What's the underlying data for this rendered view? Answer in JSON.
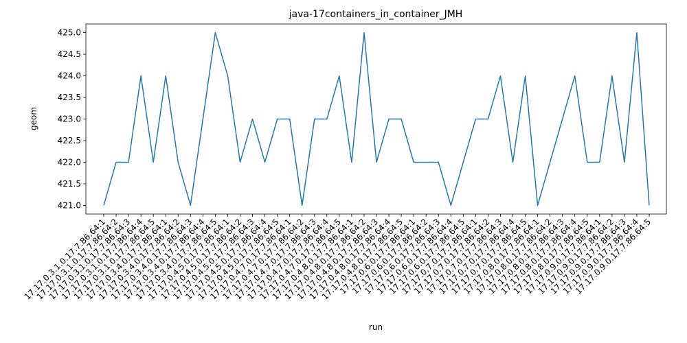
{
  "chart_data": {
    "type": "line",
    "title": "java-17containers_in_container_JMH",
    "xlabel": "run",
    "ylabel": "geom",
    "ylim": [
      420.8,
      425.2
    ],
    "yticks": [
      "421.0",
      "421.5",
      "422.0",
      "422.5",
      "423.0",
      "423.5",
      "424.0",
      "424.5",
      "425.0"
    ],
    "grid": false,
    "line_color": "#1f77b4",
    "categories": [
      "17.17.0.3.1.0.17.7.86.64:1",
      "17.17.0.3.1.0.17.7.86.64:2",
      "17.17.0.3.1.0.17.7.86.64:3",
      "17.17.0.3.1.0.17.7.86.64:4",
      "17.17.0.3.1.0.17.7.86.64:5",
      "17.17.0.3.4.0.17.7.86.64:1",
      "17.17.0.3.4.0.17.7.86.64:2",
      "17.17.0.3.4.0.17.7.86.64:3",
      "17.17.0.3.4.0.17.7.86.64:4",
      "17.17.0.3.4.0.17.7.86.64:5",
      "17.17.0.4.5.0.17.7.86.64:1",
      "17.17.0.4.5.0.17.7.86.64:2",
      "17.17.0.4.5.0.17.7.86.64:3",
      "17.17.0.4.5.0.17.7.86.64:4",
      "17.17.0.4.5.0.17.7.86.64:5",
      "17.17.0.4.7.0.17.7.86.64:1",
      "17.17.0.4.7.0.17.7.86.64:2",
      "17.17.0.4.7.0.17.7.86.64:3",
      "17.17.0.4.7.0.17.7.86.64:4",
      "17.17.0.4.7.0.17.7.86.64:5",
      "17.17.0.4.8.0.17.7.86.64:1",
      "17.17.0.4.8.0.17.7.86.64:2",
      "17.17.0.4.8.0.17.7.86.64:3",
      "17.17.0.4.8.0.17.7.86.64:4",
      "17.17.0.4.8.0.17.7.86.64:5",
      "17.17.0.6.0.17.7.86.64:1",
      "17.17.0.6.0.17.7.86.64:2",
      "17.17.0.6.0.17.7.86.64:3",
      "17.17.0.6.0.17.7.86.64:4",
      "17.17.0.6.0.17.7.86.64:5",
      "17.17.0.7.0.17.7.86.64:1",
      "17.17.0.7.0.17.7.86.64:2",
      "17.17.0.7.0.17.7.86.64:3",
      "17.17.0.7.0.17.7.86.64:4",
      "17.17.0.7.0.17.7.86.64:5",
      "17.17.0.8.0.17.7.86.64:1",
      "17.17.0.8.0.17.7.86.64:2",
      "17.17.0.8.0.17.7.86.64:3",
      "17.17.0.8.0.17.7.86.64:4",
      "17.17.0.8.0.17.7.86.64:5",
      "17.17.0.9.0.17.7.86.64:1",
      "17.17.0.9.0.17.7.86.64:2",
      "17.17.0.9.0.17.7.86.64:3",
      "17.17.0.9.0.17.7.86.64:4",
      "17.17.0.9.0.17.7.86.64:5"
    ],
    "values": [
      421,
      422,
      422,
      424,
      422,
      424,
      422,
      421,
      423,
      425,
      424,
      422,
      423,
      422,
      423,
      423,
      421,
      423,
      423,
      424,
      422,
      425,
      422,
      423,
      423,
      422,
      422,
      422,
      421,
      422,
      423,
      423,
      424,
      422,
      424,
      421,
      422,
      423,
      424,
      422,
      422,
      424,
      422,
      425,
      421
    ]
  }
}
